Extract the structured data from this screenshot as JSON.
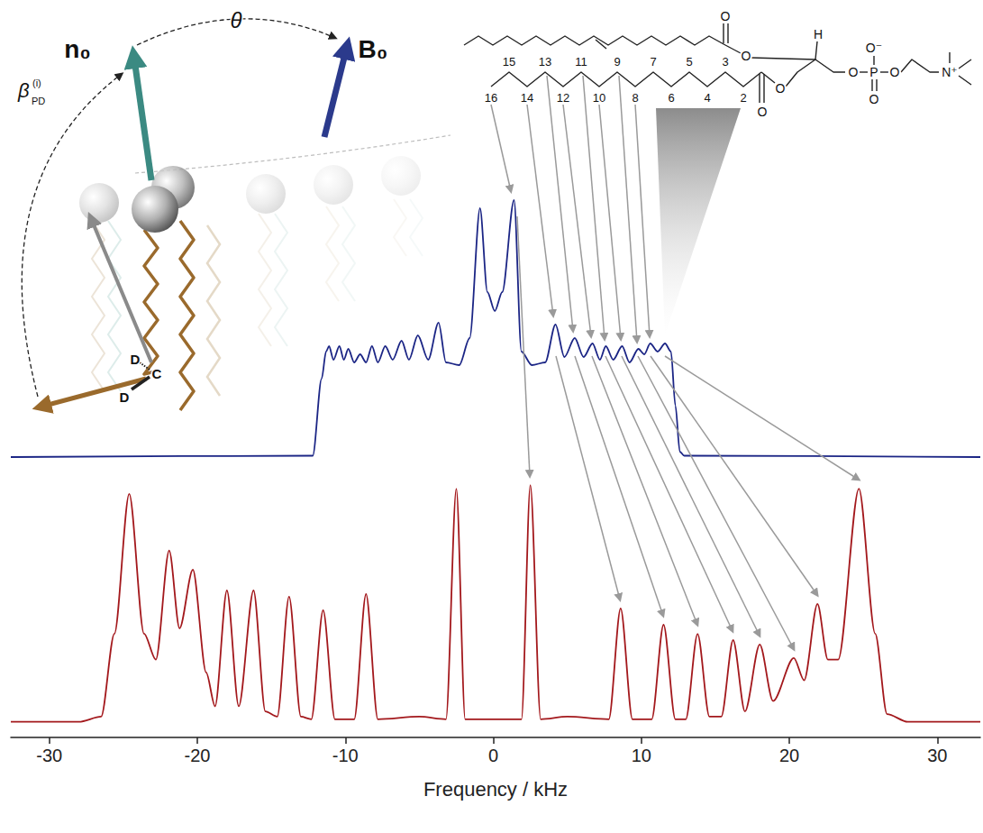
{
  "chart_data": [
    {
      "type": "line",
      "tick_labels": false,
      "xlim": [
        -32.6,
        32.9
      ],
      "ylim": [
        0,
        100
      ],
      "series": [
        {
          "color": "#1b2585",
          "x": [
            -32.6,
            -12.2,
            -11.6,
            -11.3,
            -11.1,
            -10.8,
            -10.4,
            -10.1,
            -9.8,
            -9.4,
            -9.0,
            -8.6,
            -8.2,
            -7.8,
            -7.3,
            -6.8,
            -6.2,
            -5.7,
            -5.1,
            -4.4,
            -3.7,
            -3.2,
            -2.3,
            -1.6,
            -0.9,
            -0.4,
            0.1,
            0.6,
            1.4,
            1.9,
            2.6,
            3.5,
            4.2,
            4.8,
            5.5,
            6.1,
            6.7,
            7.2,
            7.6,
            8.1,
            8.7,
            9.2,
            9.8,
            10.2,
            10.6,
            11.1,
            11.6,
            12.0,
            12.3,
            12.6,
            12.9,
            32.9
          ],
          "values": [
            1,
            1.5,
            30,
            40,
            42,
            37,
            42,
            37,
            41,
            36,
            39,
            36,
            42,
            36,
            42,
            37,
            44,
            37,
            46,
            37,
            50.7,
            36,
            35,
            45,
            93,
            62,
            55,
            62,
            96,
            40,
            35,
            36,
            50,
            38,
            45,
            38,
            43,
            37,
            42,
            37,
            42,
            36,
            41,
            39,
            43,
            40,
            43,
            40,
            20,
            3,
            1.5,
            1
          ]
        }
      ]
    },
    {
      "type": "line",
      "tick_labels": "x",
      "xlabel": "Frequency / kHz",
      "xlim": [
        -32.6,
        32.9
      ],
      "xticks": [
        -30,
        -20,
        -10,
        0,
        10,
        20,
        30
      ],
      "ylim": [
        0,
        100
      ],
      "series": [
        {
          "color": "#a3181c",
          "x": [
            -32.6,
            -28,
            -26.5,
            -25.6,
            -24.6,
            -23.6,
            -22.8,
            -21.9,
            -21.2,
            -20.3,
            -19.4,
            -18.8,
            -18,
            -17.2,
            -16.2,
            -15.4,
            -14.6,
            -13.8,
            -13,
            -12.3,
            -11.5,
            -10.7,
            -9.4,
            -8.6,
            -7.8,
            -5,
            -3.2,
            -2.5,
            -1.9,
            0,
            1.9,
            2.5,
            3.2,
            5,
            7.8,
            8.6,
            9.4,
            10.7,
            11.5,
            12.3,
            13,
            13.8,
            14.6,
            15.4,
            16.2,
            17,
            18,
            18.9,
            20.3,
            21,
            21.9,
            22.6,
            23.3,
            24.7,
            25.8,
            26.6,
            28,
            32.9
          ],
          "values": [
            6,
            6,
            8,
            40,
            93.8,
            40,
            30,
            72,
            42,
            64.6,
            25,
            12,
            56.6,
            12,
            56.6,
            10,
            8,
            54.2,
            8,
            7,
            49,
            7,
            7,
            55.2,
            7,
            8,
            7,
            95.8,
            7,
            7,
            7,
            97.2,
            7,
            8,
            7,
            49.7,
            7,
            7,
            43.4,
            7,
            7,
            39.9,
            8,
            8,
            37.5,
            10,
            35.8,
            14,
            30.6,
            22,
            51.4,
            30,
            30,
            95.8,
            40,
            9,
            6,
            6
          ]
        }
      ]
    }
  ],
  "diagram": {
    "vectors": [
      {
        "label": "n₀"
      },
      {
        "label": "B₀"
      }
    ],
    "angle": "θ",
    "tilt": {
      "symbol": "β",
      "subscript": "PD",
      "superscript": "(i)"
    },
    "bond_atoms": [
      "D",
      "C",
      "D"
    ],
    "carbon_numbers": [
      16,
      15,
      14,
      13,
      12,
      11,
      10,
      9,
      8,
      7,
      6,
      5,
      4,
      3,
      2
    ],
    "molecule_atoms": [
      "O",
      "O",
      "H",
      "O",
      "O",
      "O⁻",
      "P",
      "O",
      "O",
      "O",
      "N⁺"
    ]
  }
}
